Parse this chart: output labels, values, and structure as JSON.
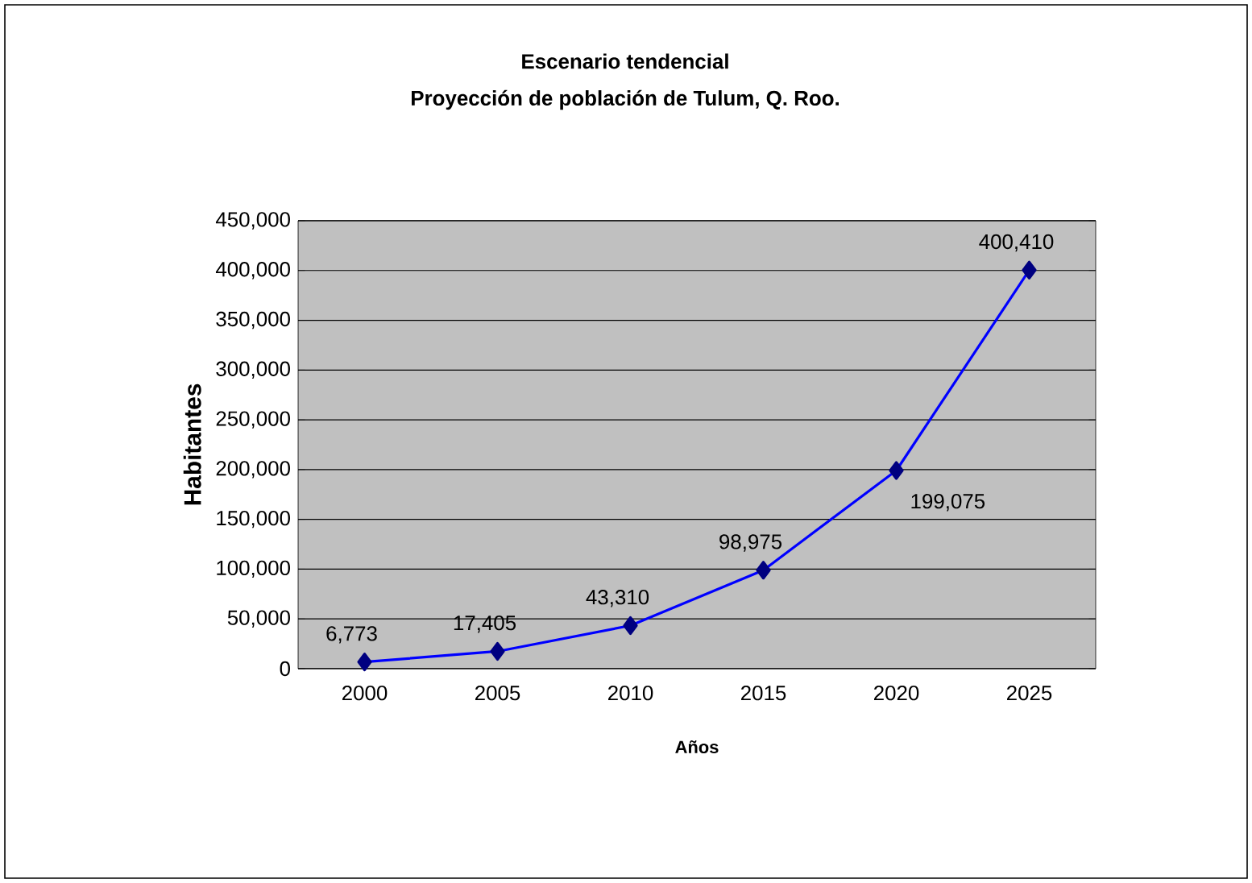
{
  "chart_data": {
    "type": "line",
    "title": "Escenario tendencial",
    "subtitle": "Proyección de población de Tulum, Q. Roo.",
    "xlabel": "Años",
    "ylabel": "Habitantes",
    "categories": [
      "2000",
      "2005",
      "2010",
      "2015",
      "2020",
      "2025"
    ],
    "series": [
      {
        "color": "#0000ff",
        "values": [
          6773,
          17405,
          43310,
          98975,
          199075,
          400410
        ],
        "value_labels": [
          "6,773",
          "17,405",
          "43,310",
          "98,975",
          "199,075",
          "400,410"
        ]
      }
    ],
    "marker": "diamond",
    "line_style": "solid",
    "grid": "y",
    "ylim": [
      0,
      450000
    ],
    "yticks": [
      {
        "value": 0,
        "label": "0"
      },
      {
        "value": 50000,
        "label": "50,000"
      },
      {
        "value": 100000,
        "label": "100,000"
      },
      {
        "value": 150000,
        "label": "150,000"
      },
      {
        "value": 200000,
        "label": "200,000"
      },
      {
        "value": 250000,
        "label": "250,000"
      },
      {
        "value": 300000,
        "label": "300,000"
      },
      {
        "value": 350000,
        "label": "350,000"
      },
      {
        "value": 400000,
        "label": "400,000"
      },
      {
        "value": 450000,
        "label": "450,000"
      }
    ]
  }
}
